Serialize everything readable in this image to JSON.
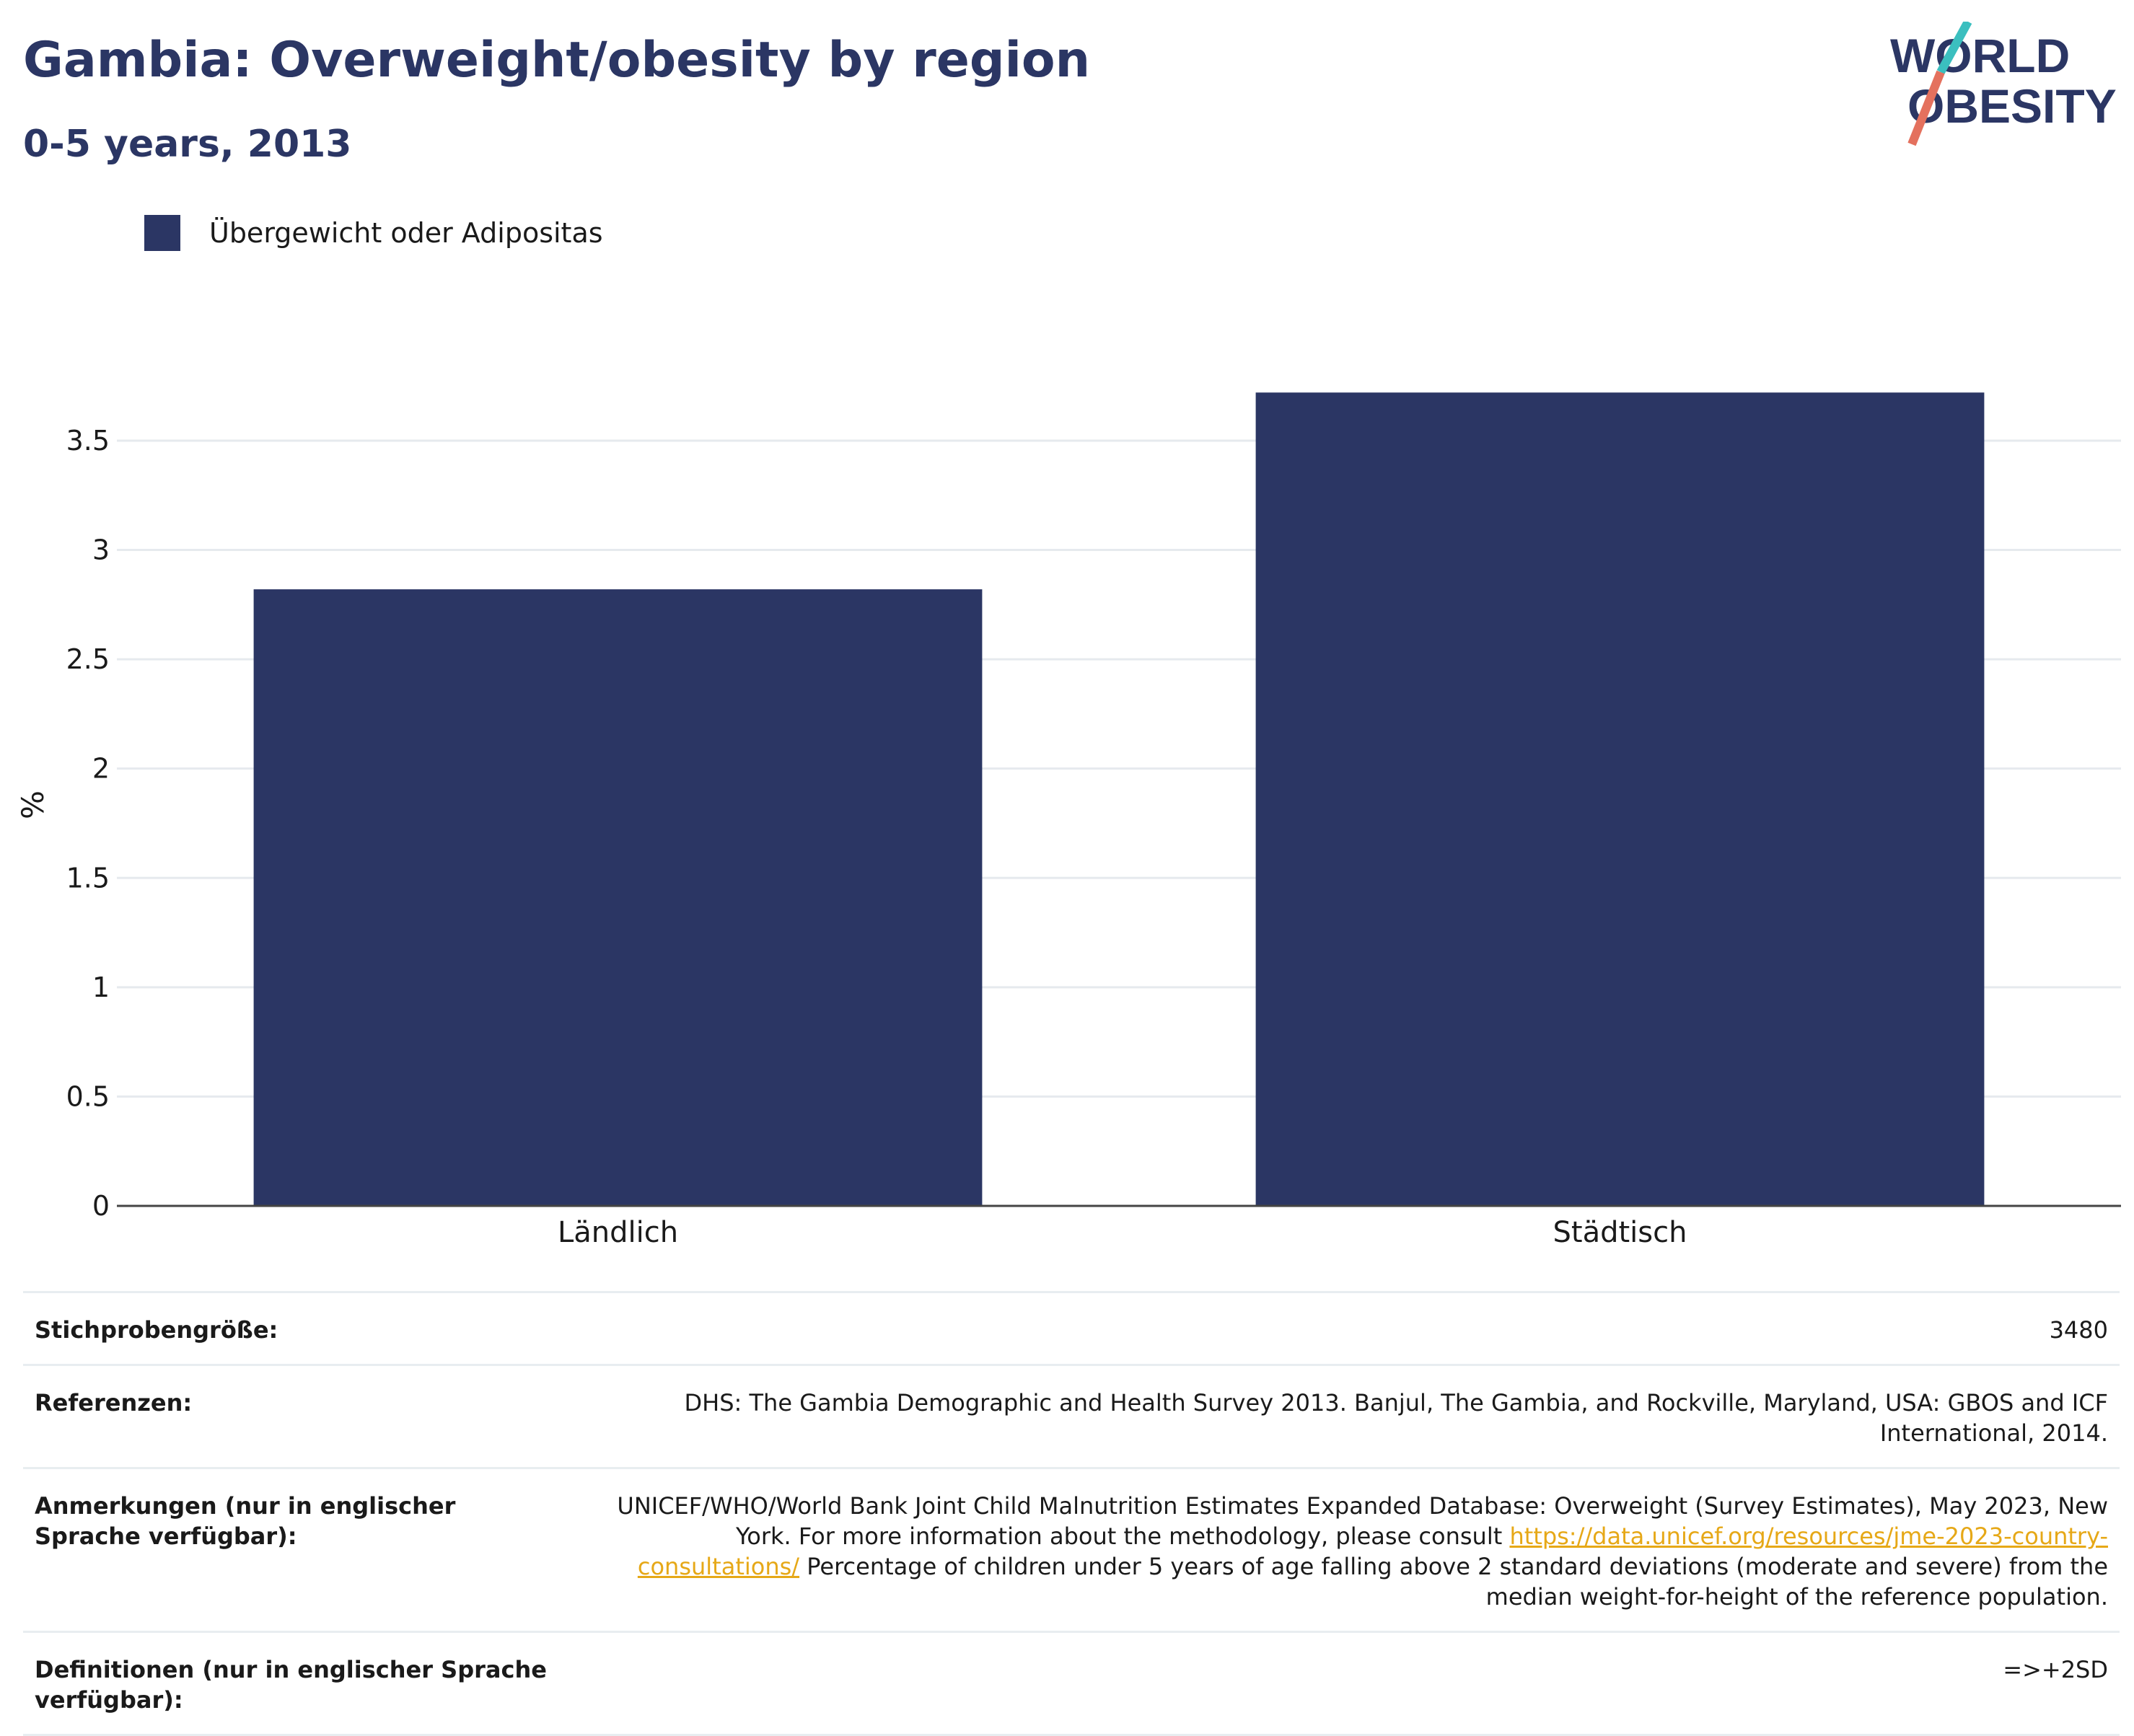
{
  "header": {
    "title": "Gambia: Overweight/obesity by region",
    "subtitle": "0-5 years, 2013",
    "logo_line1": "WORLD",
    "logo_line2": "OBESITY"
  },
  "colors": {
    "bar": "#2b3664",
    "accent_teal": "#3bbfbf",
    "accent_red": "#e4715e",
    "link": "#e6a817"
  },
  "chart_data": {
    "type": "bar",
    "categories": [
      "Ländlich",
      "Städtisch"
    ],
    "series": [
      {
        "name": "Übergewicht oder Adipositas",
        "values": [
          2.82,
          3.72
        ]
      }
    ],
    "ylabel": "%",
    "ylim": [
      0,
      3.8
    ],
    "yticks": [
      0,
      0.5,
      1,
      1.5,
      2,
      2.5,
      3,
      3.5
    ],
    "ytick_labels": [
      "0",
      "0.5",
      "1",
      "1.5",
      "2",
      "2.5",
      "3",
      "3.5"
    ],
    "grid": true,
    "legend": "top-left"
  },
  "info": {
    "sample_label": "Stichprobengröße:",
    "sample_value": "3480",
    "ref_label": "Referenzen:",
    "ref_value": "DHS: The Gambia Demographic and Health Survey 2013. Banjul, The Gambia, and Rockville, Maryland, USA: GBOS and ICF International, 2014.",
    "notes_label": "Anmerkungen (nur in englischer Sprache verfügbar):",
    "notes_text1": "UNICEF/WHO/World Bank Joint Child Malnutrition Estimates Expanded Database: Overweight (Survey Estimates), May 2023, New York. For more information about the methodology, please consult ",
    "notes_link": "https://data.unicef.org/resources/jme-2023-country-consultations/",
    "notes_text2": " Percentage of children under 5 years of age falling above 2 standard deviations (moderate and severe) from the median weight-for-height of the reference population.",
    "def_label": "Definitionen (nur in englischer Sprache verfügbar):",
    "def_value": "=>+2SD"
  }
}
